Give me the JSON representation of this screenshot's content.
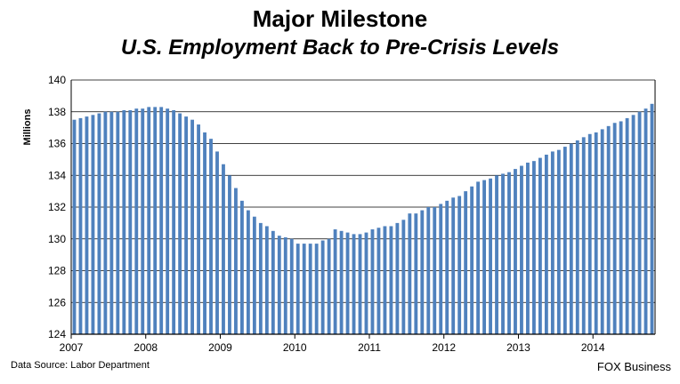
{
  "header": {
    "title": "Major Milestone",
    "subtitle": "U.S. Employment Back to Pre-Crisis Levels"
  },
  "footer": {
    "source": "Data Source: Labor Department",
    "brand": "FOX Business"
  },
  "chart_data": {
    "type": "bar",
    "ylabel": "Millions",
    "ylim": [
      124,
      140
    ],
    "yticks": [
      124,
      126,
      128,
      130,
      132,
      134,
      136,
      138,
      140
    ],
    "xtick_labels": [
      "2007",
      "2008",
      "2009",
      "2010",
      "2011",
      "2012",
      "2013",
      "2014"
    ],
    "grid": true,
    "bar_color": "#4f81bd",
    "series": [
      {
        "values": [
          137.5,
          137.6,
          137.7,
          137.8,
          137.9,
          138.0,
          138.0,
          138.0,
          138.1,
          138.1,
          138.2,
          138.2,
          138.3,
          138.3,
          138.3,
          138.2,
          138.1,
          137.9,
          137.7,
          137.5,
          137.2,
          136.7,
          136.3,
          135.5,
          134.7,
          134.0,
          133.2,
          132.4,
          131.8,
          131.4,
          131.0,
          130.8,
          130.5,
          130.2,
          130.1,
          130.0,
          129.7,
          129.7,
          129.7,
          129.7,
          129.9,
          130.0,
          130.6,
          130.5,
          130.4,
          130.3,
          130.3,
          130.4,
          130.6,
          130.7,
          130.8,
          130.8,
          131.0,
          131.2,
          131.6,
          131.6,
          131.8,
          132.0,
          132.0,
          132.2,
          132.4,
          132.6,
          132.7,
          133.0,
          133.3,
          133.6,
          133.7,
          133.8,
          134.0,
          134.1,
          134.2,
          134.4,
          134.6,
          134.8,
          134.9,
          135.1,
          135.3,
          135.5,
          135.6,
          135.8,
          136.0,
          136.2,
          136.4,
          136.6,
          136.7,
          136.9,
          137.1,
          137.3,
          137.4,
          137.6,
          137.8,
          138.0,
          138.2,
          138.5
        ]
      }
    ]
  }
}
